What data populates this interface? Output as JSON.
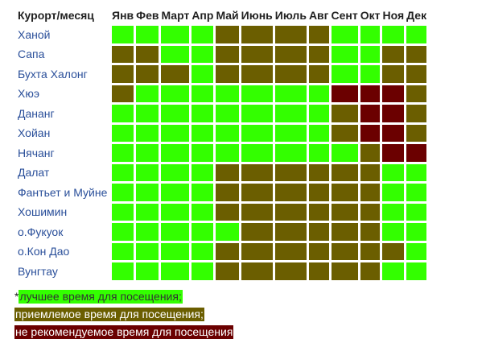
{
  "header": {
    "corner": "Курорт/месяц",
    "months": [
      "Янв",
      "Фев",
      "Март",
      "Апр",
      "Май",
      "Июнь",
      "Июль",
      "Авг",
      "Сент",
      "Окт",
      "Ноя",
      "Дек"
    ]
  },
  "colors": {
    "good": "#33ff00",
    "ok": "#6b5e00",
    "bad": "#6b0000"
  },
  "rows": [
    {
      "resort": "Ханой",
      "months": [
        "good",
        "good",
        "good",
        "good",
        "ok",
        "ok",
        "ok",
        "ok",
        "good",
        "good",
        "good",
        "good"
      ]
    },
    {
      "resort": "Сапа",
      "months": [
        "ok",
        "ok",
        "good",
        "good",
        "ok",
        "ok",
        "ok",
        "ok",
        "good",
        "good",
        "ok",
        "ok"
      ]
    },
    {
      "resort": "Бухта Халонг",
      "months": [
        "ok",
        "ok",
        "ok",
        "good",
        "ok",
        "ok",
        "ok",
        "ok",
        "good",
        "good",
        "ok",
        "ok"
      ]
    },
    {
      "resort": "Хюэ",
      "months": [
        "ok",
        "good",
        "good",
        "good",
        "good",
        "good",
        "good",
        "good",
        "bad",
        "bad",
        "bad",
        "ok"
      ]
    },
    {
      "resort": "Дананг",
      "months": [
        "good",
        "good",
        "good",
        "good",
        "good",
        "good",
        "good",
        "good",
        "ok",
        "bad",
        "bad",
        "ok"
      ]
    },
    {
      "resort": "Хойан",
      "months": [
        "good",
        "good",
        "good",
        "good",
        "good",
        "good",
        "good",
        "good",
        "ok",
        "bad",
        "bad",
        "ok"
      ]
    },
    {
      "resort": "Нячанг",
      "months": [
        "good",
        "good",
        "good",
        "good",
        "good",
        "good",
        "good",
        "good",
        "good",
        "ok",
        "bad",
        "bad"
      ]
    },
    {
      "resort": "Далат",
      "months": [
        "good",
        "good",
        "good",
        "good",
        "ok",
        "ok",
        "ok",
        "ok",
        "ok",
        "ok",
        "good",
        "good"
      ]
    },
    {
      "resort": "Фантьет и Муйне",
      "months": [
        "good",
        "good",
        "good",
        "good",
        "ok",
        "ok",
        "ok",
        "ok",
        "ok",
        "ok",
        "good",
        "good"
      ]
    },
    {
      "resort": "Хошимин",
      "months": [
        "good",
        "good",
        "good",
        "good",
        "ok",
        "ok",
        "ok",
        "ok",
        "ok",
        "ok",
        "good",
        "good"
      ]
    },
    {
      "resort": "о.Фукуок",
      "months": [
        "good",
        "good",
        "good",
        "good",
        "good",
        "ok",
        "ok",
        "ok",
        "ok",
        "ok",
        "good",
        "good"
      ]
    },
    {
      "resort": "о.Кон Дао",
      "months": [
        "good",
        "good",
        "good",
        "good",
        "ok",
        "ok",
        "ok",
        "ok",
        "ok",
        "ok",
        "ok",
        "good"
      ]
    },
    {
      "resort": "Вунгтау",
      "months": [
        "good",
        "good",
        "good",
        "good",
        "ok",
        "ok",
        "ok",
        "ok",
        "ok",
        "ok",
        "good",
        "good"
      ]
    }
  ],
  "legend": {
    "asterisk": "*",
    "good": "лучшее время для посещения;",
    "ok": "приемлемое время для посещения;",
    "bad": "не рекомендуемое время для посещения"
  }
}
